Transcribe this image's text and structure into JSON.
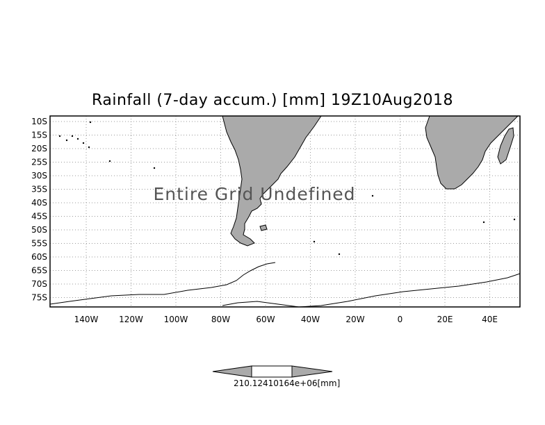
{
  "title": "Rainfall (7-day accum.) [mm] 19Z10Aug2018",
  "overlay_text": "Entire Grid Undefined",
  "lat_labels": [
    "10S",
    "15S",
    "20S",
    "25S",
    "30S",
    "35S",
    "40S",
    "45S",
    "50S",
    "55S",
    "60S",
    "65S",
    "70S",
    "75S"
  ],
  "lon_labels": [
    "140W",
    "120W",
    "100W",
    "80W",
    "60W",
    "40W",
    "20W",
    "0",
    "20E",
    "40E"
  ],
  "colorbar": {
    "label": "210.12410164e+06[mm]",
    "fill_color": "#aaaaaa"
  },
  "colors": {
    "land": "#aaaaaa",
    "coast": "#000000",
    "grid": "#999999"
  }
}
